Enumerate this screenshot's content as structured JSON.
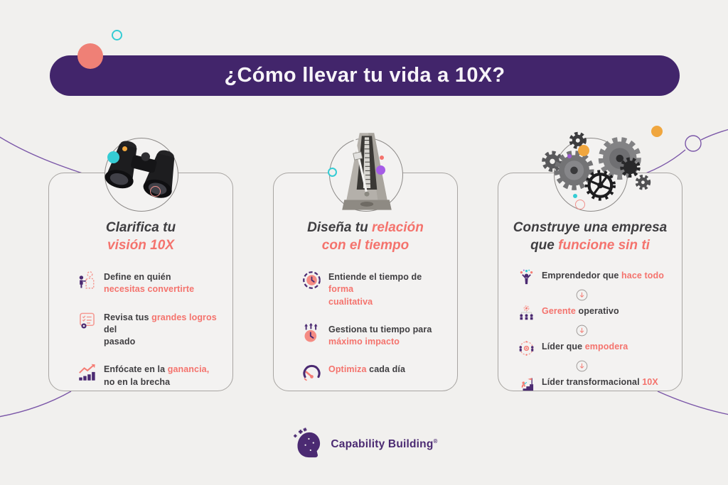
{
  "banner": {
    "title": "¿Cómo llevar tu vida a 10X?"
  },
  "colors": {
    "background": "#f1f0ee",
    "banner_bg": "#42256b",
    "coral": "#f4736d",
    "dark": "#3f3e41",
    "purple": "#4b2a72",
    "teal": "#35ccd4",
    "orange": "#f0a63e"
  },
  "cards": [
    {
      "image": "binoculars",
      "title": [
        {
          "t": "Clarifica tu",
          "nl": true
        },
        {
          "t": "visión 10X",
          "c": "coral"
        }
      ],
      "items": [
        {
          "type": "step",
          "icon": "person-become",
          "segments": [
            {
              "t": "Define en quién",
              "nl": true
            },
            {
              "t": "necesitas convertirte",
              "c": "coral"
            }
          ]
        },
        {
          "type": "step",
          "icon": "checklist",
          "segments": [
            {
              "t": "Revisa tus "
            },
            {
              "t": "grandes logros",
              "c": "coral"
            },
            {
              "t": " del",
              "nl": true
            },
            {
              "t": "pasado"
            }
          ]
        },
        {
          "type": "step",
          "icon": "growth-chart",
          "segments": [
            {
              "t": "Enfócate en la "
            },
            {
              "t": "ganancia,",
              "c": "coral",
              "nl": true
            },
            {
              "t": "no en la brecha"
            }
          ]
        }
      ]
    },
    {
      "image": "metronome",
      "title": [
        {
          "t": "Diseña tu "
        },
        {
          "t": "relación",
          "c": "coral",
          "nl": true
        },
        {
          "t": "con el tiempo",
          "c": "coral"
        }
      ],
      "items": [
        {
          "type": "step",
          "icon": "clock",
          "segments": [
            {
              "t": "Entiende el tiempo de "
            },
            {
              "t": "forma",
              "c": "coral",
              "nl": true
            },
            {
              "t": "cualitativa",
              "c": "coral"
            }
          ]
        },
        {
          "type": "step",
          "icon": "clock-arrows",
          "segments": [
            {
              "t": "Gestiona tu tiempo para",
              "nl": true
            },
            {
              "t": "máximo impacto",
              "c": "coral"
            }
          ]
        },
        {
          "type": "step",
          "icon": "speedometer",
          "segments": [
            {
              "t": "Optimiza",
              "c": "coral"
            },
            {
              "t": " cada día"
            }
          ]
        }
      ]
    },
    {
      "image": "gears",
      "title": [
        {
          "t": "Construye una empresa",
          "nl": true
        },
        {
          "t": "que "
        },
        {
          "t": "funcione sin ti",
          "c": "coral"
        }
      ],
      "items": [
        {
          "type": "step",
          "icon": "juggler",
          "segments": [
            {
              "t": "Emprendedor que "
            },
            {
              "t": "hace todo",
              "c": "coral"
            }
          ]
        },
        {
          "type": "connector",
          "icon": "down-arrow"
        },
        {
          "type": "step",
          "icon": "org-chart",
          "segments": [
            {
              "t": "Gerente",
              "c": "coral"
            },
            {
              "t": " operativo"
            }
          ]
        },
        {
          "type": "connector",
          "icon": "down-arrow"
        },
        {
          "type": "step",
          "icon": "empower",
          "segments": [
            {
              "t": "Líder que "
            },
            {
              "t": "empodera",
              "c": "coral"
            }
          ]
        },
        {
          "type": "connector",
          "icon": "down-arrow"
        },
        {
          "type": "step",
          "icon": "stairs-flag",
          "segments": [
            {
              "t": "Líder transformacional "
            },
            {
              "t": "10X",
              "c": "coral"
            }
          ]
        }
      ]
    }
  ],
  "footer": {
    "brand": "Capability Building",
    "registered": "®",
    "logo_icon": "puzzle-head"
  }
}
